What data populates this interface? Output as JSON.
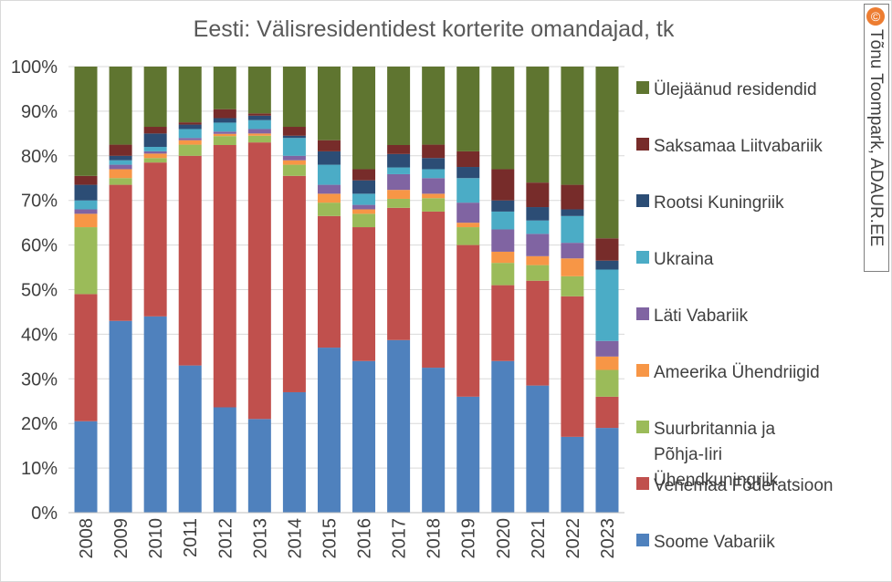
{
  "chart_data": {
    "type": "bar",
    "stacked": true,
    "percent": true,
    "title": "Eesti: Välisresidentidest korterite omandajad, tk",
    "categories": [
      "2008",
      "2009",
      "2010",
      "2011",
      "2012",
      "2013",
      "2014",
      "2015",
      "2016",
      "2017",
      "2018",
      "2019",
      "2020",
      "2021",
      "2022",
      "2023"
    ],
    "ylim": [
      0,
      100
    ],
    "yticks": [
      "0%",
      "10%",
      "20%",
      "30%",
      "40%",
      "50%",
      "60%",
      "70%",
      "80%",
      "90%",
      "100%"
    ],
    "grid": true,
    "legend_position": "right",
    "series": [
      {
        "name": "Soome Vabariik",
        "color": "#4f81bd",
        "values": [
          20.5,
          43,
          44,
          33,
          23.5,
          21,
          27,
          37,
          34,
          38.5,
          32.5,
          26,
          34,
          28.5,
          17,
          19
        ]
      },
      {
        "name": "Venemaa Föderatsioon",
        "color": "#c0504d",
        "values": [
          28.5,
          30.5,
          34.5,
          47,
          58.5,
          62,
          48.5,
          29.5,
          30,
          29.5,
          35,
          34,
          17,
          23.5,
          31.5,
          7
        ]
      },
      {
        "name": "Suurbritannia ja Põhja-Iiri Ühendkuningriik",
        "color": "#9bbb59",
        "values": [
          15,
          1.5,
          1,
          2.5,
          2,
          1.5,
          2.5,
          3,
          3,
          2,
          3,
          4,
          5,
          3.5,
          4.5,
          6
        ]
      },
      {
        "name": "Ameerika Ühendriigid",
        "color": "#f79646",
        "values": [
          3,
          2,
          1,
          1,
          0.5,
          0.5,
          1,
          2,
          1,
          2,
          1,
          1,
          2.5,
          2,
          4,
          3
        ]
      },
      {
        "name": "Läti Vabariik",
        "color": "#8064a2",
        "values": [
          1,
          1,
          0.5,
          0.5,
          0.5,
          1,
          1,
          2,
          1,
          3.5,
          3.5,
          4.5,
          5,
          5,
          3.5,
          3.5
        ]
      },
      {
        "name": "Ukraina",
        "color": "#4bacc6",
        "values": [
          2,
          1,
          1,
          2,
          2,
          2,
          4,
          4.5,
          2.5,
          1.5,
          2,
          5.5,
          4,
          3,
          6,
          16
        ]
      },
      {
        "name": "Rootsi Kuningriik",
        "color": "#2c4d75",
        "values": [
          3.5,
          1,
          3,
          1,
          1,
          1,
          0.5,
          3,
          3,
          3,
          2.5,
          2.5,
          2.5,
          3,
          1.5,
          2
        ]
      },
      {
        "name": "Saksamaa Liitvabariik",
        "color": "#772c2a",
        "values": [
          2,
          2.5,
          1.5,
          0.5,
          2,
          0.5,
          2,
          2.5,
          2.5,
          2,
          3,
          3.5,
          7,
          5.5,
          5.5,
          5
        ]
      },
      {
        "name": "Ülejäänud residendid",
        "color": "#5f7530",
        "values": [
          24.5,
          17.5,
          13.5,
          12.5,
          9.5,
          10.5,
          13.5,
          16.5,
          23,
          17.5,
          17.5,
          19,
          23,
          26,
          26.5,
          38.5
        ]
      }
    ],
    "legend_order": [
      8,
      7,
      6,
      5,
      4,
      3,
      2,
      1,
      0
    ]
  },
  "credit": {
    "symbol": "©",
    "text": "Tõnu Toompark, ADAUR.EE"
  }
}
